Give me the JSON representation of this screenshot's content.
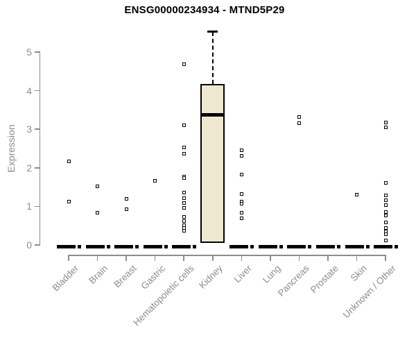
{
  "title": "ENSG00000234934 - MTND5P29",
  "colors": {
    "box_fill": "#EDE8CF",
    "line": "#000000",
    "axis": "#8C8C8C",
    "background": "#FFFFFF"
  },
  "chart_data": {
    "type": "box",
    "title": "ENSG00000234934 - MTND5P29",
    "ylabel": "Expression",
    "xlabel": "",
    "ylim": [
      0,
      5
    ],
    "yticks": [
      "0",
      "1",
      "2",
      "3",
      "4",
      "5"
    ],
    "grid": "off",
    "legend": "none",
    "categories": [
      "Bladder",
      "Brain",
      "Breast",
      "Gastric",
      "Hematopoietic cells",
      "Kidney",
      "Liver",
      "Lung",
      "Pancreas",
      "Prostate",
      "Skin",
      "Unknown / Other"
    ],
    "groups": [
      {
        "label": "Bladder",
        "zero_line": true,
        "points": [
          2.17,
          1.13
        ]
      },
      {
        "label": "Brain",
        "zero_line": true,
        "points": [
          1.52,
          0.83
        ]
      },
      {
        "label": "Breast",
        "zero_line": true,
        "points": [
          1.2,
          0.93
        ]
      },
      {
        "label": "Gastric",
        "zero_line": true,
        "points": [
          1.66
        ]
      },
      {
        "label": "Hematopoietic cells",
        "zero_line": true,
        "points": [
          4.69,
          3.11,
          2.53,
          2.37,
          1.78,
          1.74,
          1.35,
          1.22,
          1.09,
          0.96,
          0.72,
          0.62,
          0.52,
          0.44,
          0.36
        ]
      },
      {
        "label": "Kidney",
        "zero_line": false,
        "points": [],
        "box": {
          "q1": 0.05,
          "median": 3.38,
          "q3": 4.18,
          "whisker_high": 5.55
        }
      },
      {
        "label": "Liver",
        "zero_line": true,
        "points": [
          2.45,
          2.32,
          1.83,
          1.32,
          1.12,
          1.07,
          0.83,
          0.7
        ]
      },
      {
        "label": "Lung",
        "zero_line": true,
        "points": []
      },
      {
        "label": "Pancreas",
        "zero_line": true,
        "points": [
          3.32,
          3.16
        ]
      },
      {
        "label": "Prostate",
        "zero_line": true,
        "points": []
      },
      {
        "label": "Skin",
        "zero_line": true,
        "points": [
          1.31
        ]
      },
      {
        "label": "Unknown / Other",
        "zero_line": true,
        "points": [
          3.17,
          3.05,
          1.61,
          1.28,
          1.16,
          1.04,
          0.86,
          0.77,
          0.59,
          0.44,
          0.35,
          0.27,
          0.12
        ]
      }
    ]
  }
}
